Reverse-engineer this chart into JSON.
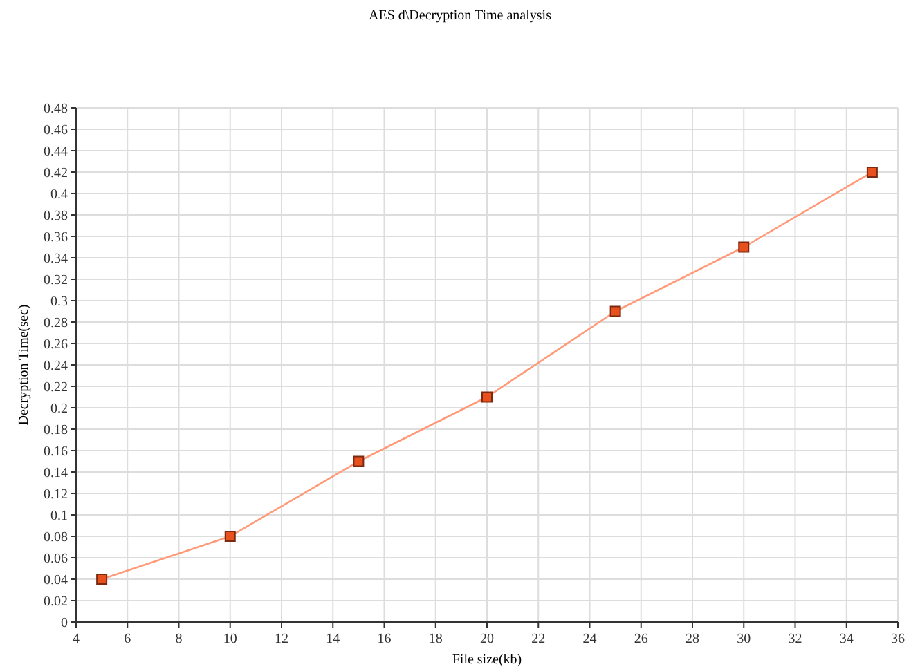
{
  "chart_data": {
    "type": "line",
    "title": "AES d\\Decryption Time analysis",
    "xlabel": "File size(kb)",
    "ylabel": "Decryption Time(sec)",
    "x": [
      5,
      10,
      15,
      20,
      25,
      30,
      35
    ],
    "series": [
      {
        "color": "#ff9977",
        "values": [
          0.04,
          0.08,
          0.15,
          0.21,
          0.29,
          0.35,
          0.42
        ]
      }
    ],
    "xlim": [
      4,
      36
    ],
    "xticks": [
      4,
      6,
      8,
      10,
      12,
      14,
      16,
      18,
      20,
      22,
      24,
      26,
      28,
      30,
      32,
      34,
      36
    ],
    "ylim": [
      0,
      0.48
    ],
    "yticks": [
      0,
      0.02,
      0.04,
      0.06,
      0.08,
      0.1,
      0.12,
      0.14,
      0.16,
      0.18,
      0.2,
      0.22,
      0.24,
      0.26,
      0.28,
      0.3,
      0.32,
      0.34,
      0.36,
      0.38,
      0.4,
      0.42,
      0.44,
      0.46,
      0.48
    ],
    "grid": true,
    "marker": "square",
    "line_style": "solid"
  }
}
